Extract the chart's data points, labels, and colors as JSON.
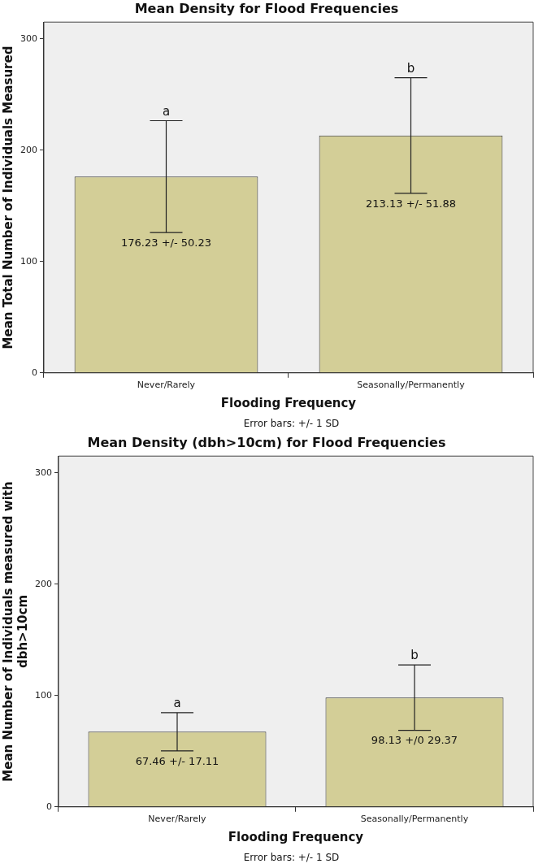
{
  "chart_data": [
    {
      "type": "bar",
      "title": "Mean Density for Flood Frequencies",
      "xlabel": "Flooding Frequency",
      "ylabel": "Mean Total Number of Individuals Measured",
      "categories": [
        "Never/Rarely",
        "Seasonally/Permanently"
      ],
      "values": [
        176.23,
        213.13
      ],
      "errors": [
        50.23,
        51.88
      ],
      "value_labels": [
        "176.23 +/- 50.23",
        "213.13 +/- 51.88"
      ],
      "color": "#d3ce97",
      "ylim": [
        0,
        315
      ],
      "yticks": [
        0,
        100,
        200,
        300
      ],
      "grid": false,
      "legend": false,
      "annotations": [
        {
          "text": "a",
          "x": "Never/Rarely",
          "y": 226.46
        },
        {
          "text": "b",
          "x": "Seasonally/Permanently",
          "y": 265.01
        },
        "Error bars: +/- 1 SD"
      ]
    },
    {
      "type": "bar",
      "title": "Mean Density (dbh>10cm) for Flood Frequencies",
      "xlabel": "Flooding Frequency",
      "ylabel": "Mean Number of Individuals measured with dbh>10cm",
      "categories": [
        "Never/Rarely",
        "Seasonally/Permanently"
      ],
      "values": [
        67.46,
        98.13
      ],
      "errors": [
        17.11,
        29.37
      ],
      "value_labels": [
        "67.46 +/- 17.11",
        "98.13 +/0 29.37"
      ],
      "color": "#d3ce97",
      "ylim": [
        0,
        315
      ],
      "yticks": [
        0,
        100,
        200,
        300
      ],
      "grid": false,
      "legend": false,
      "annotations": [
        {
          "text": "a",
          "x": "Never/Rarely",
          "y": 84.57
        },
        {
          "text": "b",
          "x": "Seasonally/Permanently",
          "y": 127.5
        },
        "Error bars: +/- 1 SD"
      ]
    }
  ]
}
